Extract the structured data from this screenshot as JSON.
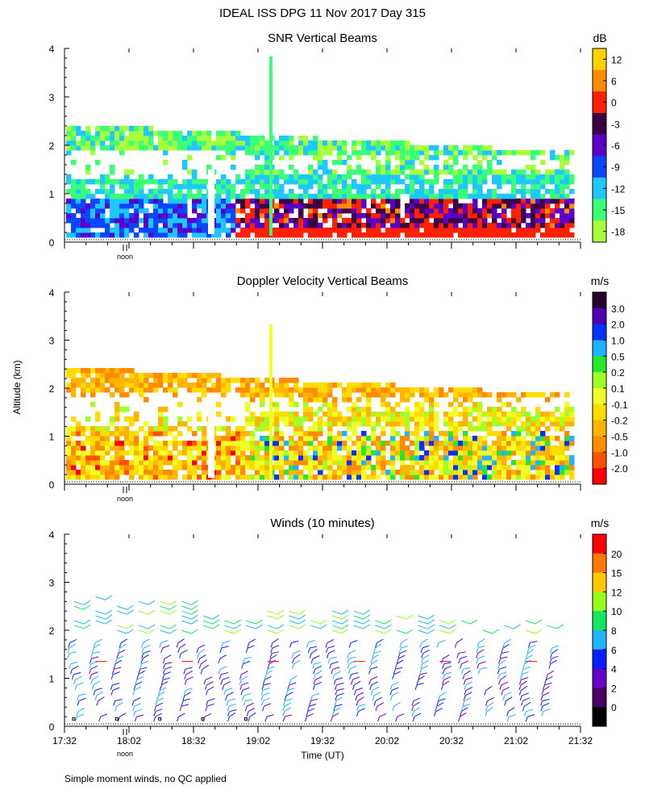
{
  "figure": {
    "title": "IDEAL ISS DPG  11 Nov 2017 Day 315",
    "ylabel": "Altitude (km)",
    "xlabel": "Time (UT)",
    "noon_label": "noon",
    "footnote": "Simple moment winds, no QC applied"
  },
  "chart_data": [
    {
      "type": "heatmap",
      "title": "SNR Vertical Beams",
      "ylim": [
        0,
        4
      ],
      "yticks": [
        0,
        1,
        2,
        3,
        4
      ],
      "xrange": [
        "17:32",
        "21:32"
      ],
      "colorbar": {
        "unit": "dB",
        "labels": [
          "-18",
          "-15",
          "-12",
          "-9",
          "-6",
          "-3",
          "0",
          "6",
          "12"
        ],
        "colors": [
          "#a8ff3c",
          "#3cff78",
          "#1ec8ff",
          "#0a46ff",
          "#5a00c8",
          "#3c0046",
          "#ff2000",
          "#ff8c00",
          "#ffd200"
        ]
      }
    },
    {
      "type": "heatmap",
      "title": "Doppler Velocity Vertical Beams",
      "ylim": [
        0,
        4
      ],
      "yticks": [
        0,
        1,
        2,
        3,
        4
      ],
      "xrange": [
        "17:32",
        "21:32"
      ],
      "colorbar": {
        "unit": "m/s",
        "labels": [
          "-2.0",
          "-1.0",
          "-0.5",
          "-0.2",
          "-0.1",
          "0.1",
          "0.2",
          "0.5",
          "1.0",
          "2.0",
          "3.0"
        ],
        "colors": [
          "#ff0000",
          "#ff5000",
          "#ff8c00",
          "#ffb400",
          "#ffdc00",
          "#f0ff28",
          "#a0ff28",
          "#28e628",
          "#1eb4ff",
          "#0032ff",
          "#5000b4",
          "#28002d"
        ]
      }
    },
    {
      "type": "scatter",
      "title": "Winds (10 minutes)",
      "ylim": [
        0,
        4
      ],
      "yticks": [
        0,
        1,
        2,
        3,
        4
      ],
      "xticks": [
        "17:32",
        "18:02",
        "18:32",
        "19:02",
        "19:32",
        "20:02",
        "20:32",
        "21:02",
        "21:32"
      ],
      "colorbar": {
        "unit": "m/s",
        "labels": [
          "0",
          "2",
          "4",
          "6",
          "8",
          "10",
          "12",
          "15",
          "20"
        ],
        "colors": [
          "#000000",
          "#4b0064",
          "#6400c8",
          "#0a1eff",
          "#1eb4ff",
          "#14e664",
          "#96ff1e",
          "#ffc800",
          "#ff7800",
          "#ff0000"
        ]
      }
    }
  ]
}
